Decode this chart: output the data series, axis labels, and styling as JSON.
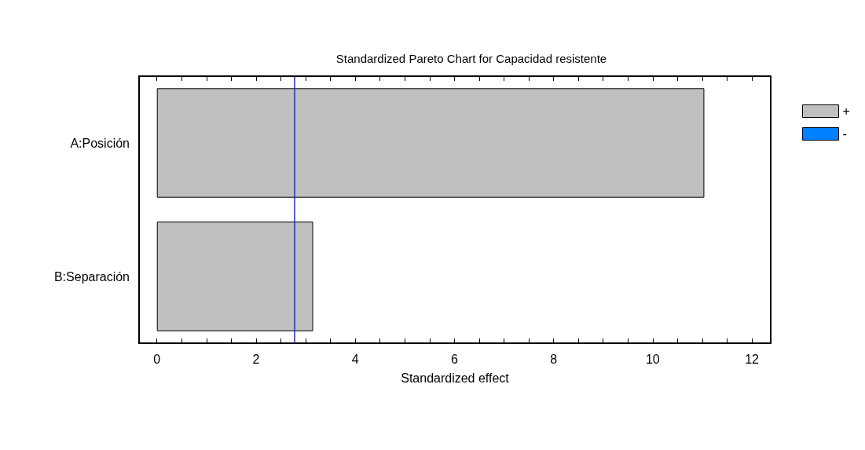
{
  "chart_data": {
    "type": "bar",
    "orientation": "horizontal",
    "title": "Standardized Pareto Chart for Capacidad resistente",
    "xlabel": "Standardized effect",
    "categories": [
      "A:Posición",
      "B:Separación"
    ],
    "series": [
      {
        "name": "+",
        "color": "#c0c0c0",
        "values": [
          11.04,
          3.15
        ]
      },
      {
        "name": "-",
        "color": "#0080ff",
        "values": [
          null,
          null
        ]
      }
    ],
    "xlim": [
      -0.36,
      12.38
    ],
    "xticks": [
      0,
      {
        "value": 0.5,
        "label": null
      },
      {
        "value": 1,
        "label": null
      },
      {
        "value": 1.5,
        "label": null
      },
      2,
      {
        "value": 2.5,
        "label": null
      },
      {
        "value": 3,
        "label": null
      },
      {
        "value": 3.5,
        "label": null
      },
      4,
      {
        "value": 4.5,
        "label": null
      },
      {
        "value": 5,
        "label": null
      },
      {
        "value": 5.5,
        "label": null
      },
      6,
      {
        "value": 6.5,
        "label": null
      },
      {
        "value": 7,
        "label": null
      },
      {
        "value": 7.5,
        "label": null
      },
      8,
      {
        "value": 8.5,
        "label": null
      },
      {
        "value": 9,
        "label": null
      },
      {
        "value": 9.5,
        "label": null
      },
      10,
      {
        "value": 10.5,
        "label": null
      },
      {
        "value": 11,
        "label": null
      },
      {
        "value": 11.5,
        "label": null
      },
      12
    ],
    "ref_lines": [
      {
        "axis": "x",
        "value": 2.78,
        "color": "#2020ff"
      }
    ],
    "legend": "top right",
    "grid": false
  }
}
